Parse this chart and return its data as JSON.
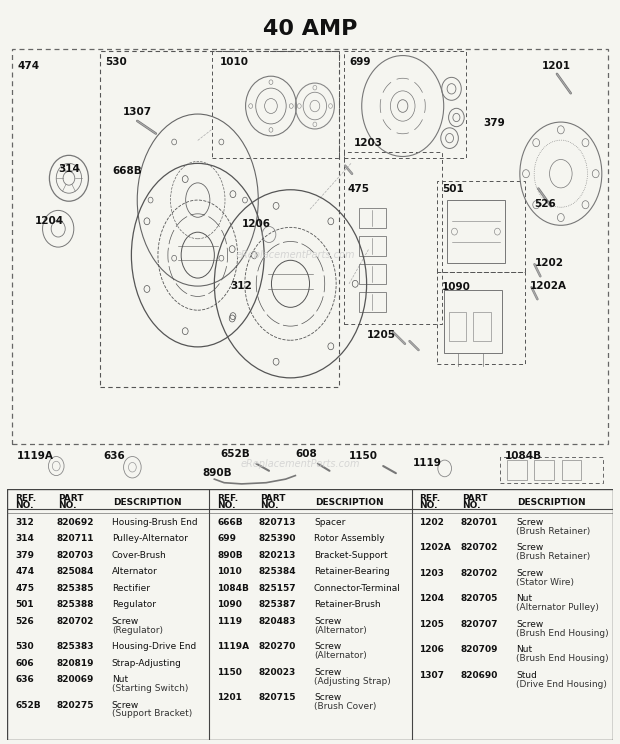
{
  "title": "40 AMP",
  "title_fontsize": 16,
  "background_color": "#f5f5f0",
  "watermark": "eReplacementParts.com",
  "table_columns": [
    {
      "rows": [
        [
          "312",
          "820692",
          "Housing-Brush End"
        ],
        [
          "314",
          "820711",
          "Pulley-Alternator"
        ],
        [
          "379",
          "820703",
          "Cover-Brush"
        ],
        [
          "474",
          "825084",
          "Alternator"
        ],
        [
          "475",
          "825385",
          "Rectifier"
        ],
        [
          "501",
          "825388",
          "Regulator"
        ],
        [
          "526",
          "820702",
          "Screw",
          "(Regulator)"
        ],
        [
          "530",
          "825383",
          "Housing-Drive End"
        ],
        [
          "606",
          "820819",
          "Strap-Adjusting"
        ],
        [
          "636",
          "820069",
          "Nut",
          "(Starting Switch)"
        ],
        [
          "652B",
          "820275",
          "Screw",
          "(Support Bracket)"
        ]
      ]
    },
    {
      "rows": [
        [
          "666B",
          "820713",
          "Spacer"
        ],
        [
          "699",
          "825390",
          "Rotor Assembly"
        ],
        [
          "890B",
          "820213",
          "Bracket-Support"
        ],
        [
          "1010",
          "825384",
          "Retainer-Bearing"
        ],
        [
          "1084B",
          "825157",
          "Connector-Terminal"
        ],
        [
          "1090",
          "825387",
          "Retainer-Brush"
        ],
        [
          "1119",
          "820483",
          "Screw",
          "(Alternator)"
        ],
        [
          "1119A",
          "820270",
          "Screw",
          "(Alternator)"
        ],
        [
          "1150",
          "820023",
          "Screw",
          "(Adjusting Strap)"
        ],
        [
          "1201",
          "820715",
          "Screw",
          "(Brush Cover)"
        ]
      ]
    },
    {
      "rows": [
        [
          "1202",
          "820701",
          "Screw",
          "(Brush Retainer)"
        ],
        [
          "1202A",
          "820702",
          "Screw",
          "(Brush Retainer)"
        ],
        [
          "1203",
          "820702",
          "Screw",
          "(Stator Wire)"
        ],
        [
          "1204",
          "820705",
          "Nut",
          "(Alternator Pulley)"
        ],
        [
          "1205",
          "820707",
          "Screw",
          "(Brush End Housing)"
        ],
        [
          "1206",
          "820709",
          "Nut",
          "(Brush End Housing)"
        ],
        [
          "1307",
          "820690",
          "Stud",
          "(Drive End Housing)"
        ]
      ]
    }
  ]
}
